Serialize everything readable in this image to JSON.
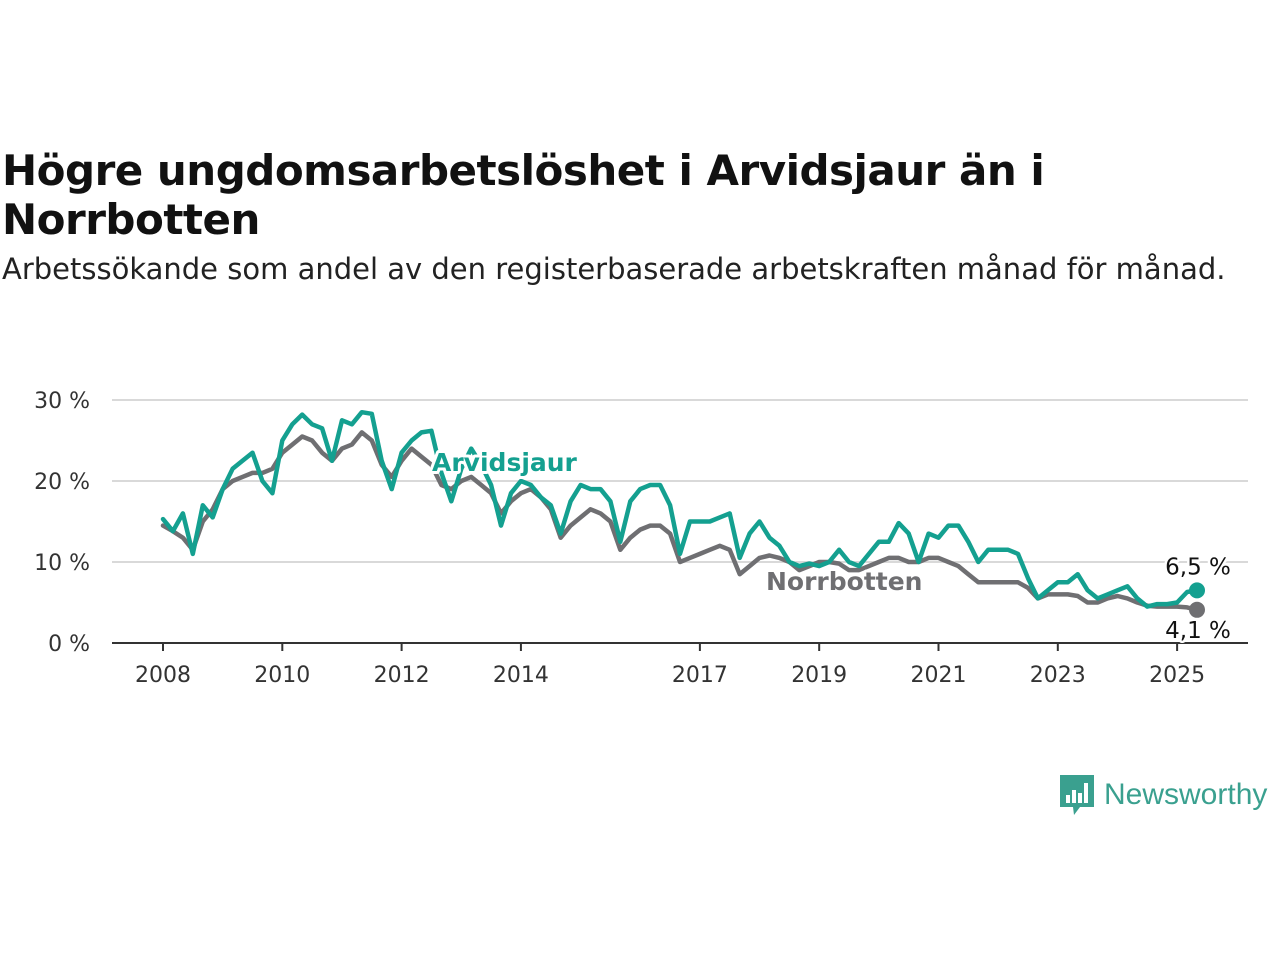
{
  "title": "Högre ungdomsarbetslöshet i Arvidsjaur än i Norrbotten",
  "subtitle": "Arbetssökande som andel av den registerbaserade arbetskraften månad för månad.",
  "brand": {
    "name": "Newsworthy",
    "icon": "newsworthy-logo-icon",
    "color": "#3aa08f"
  },
  "colors": {
    "arvidsjaur": "#14a090",
    "norrbotten": "#6f6f72",
    "grid": "#d9d9d9",
    "axis": "#333333"
  },
  "chart_data": {
    "type": "line",
    "title": "Högre ungdomsarbetslöshet i Arvidsjaur än i Norrbotten",
    "subtitle": "Arbetssökande som andel av den registerbaserade arbetskraften månad för månad.",
    "xlabel": "",
    "ylabel": "",
    "x_range": [
      "2008-01",
      "2025-05"
    ],
    "ylim": [
      0,
      30
    ],
    "y_ticks": [
      0,
      10,
      20,
      30
    ],
    "y_tick_labels": [
      "0 %",
      "10 %",
      "20 %",
      "30 %"
    ],
    "x_ticks": [
      "2008-01",
      "2010-01",
      "2012-01",
      "2014-01",
      "2017-01",
      "2019-01",
      "2021-01",
      "2023-01",
      "2025-01"
    ],
    "x_tick_labels": [
      "2008",
      "2010",
      "2012",
      "2014",
      "2017",
      "2019",
      "2021",
      "2023",
      "2025"
    ],
    "grid": "horizontal",
    "legend": "inline labels",
    "series": [
      {
        "name": "Arvidsjaur",
        "color": "#14a090",
        "end_label": "6,5 %",
        "points": [
          [
            "2008-01",
            15.3
          ],
          [
            "2008-03",
            13.8
          ],
          [
            "2008-05",
            16.0
          ],
          [
            "2008-07",
            11.0
          ],
          [
            "2008-09",
            17.0
          ],
          [
            "2008-11",
            15.5
          ],
          [
            "2009-01",
            19.0
          ],
          [
            "2009-03",
            21.5
          ],
          [
            "2009-05",
            22.5
          ],
          [
            "2009-07",
            23.5
          ],
          [
            "2009-09",
            20.0
          ],
          [
            "2009-11",
            18.5
          ],
          [
            "2010-01",
            25.0
          ],
          [
            "2010-03",
            27.0
          ],
          [
            "2010-05",
            28.2
          ],
          [
            "2010-07",
            27.0
          ],
          [
            "2010-09",
            26.5
          ],
          [
            "2010-11",
            22.5
          ],
          [
            "2011-01",
            27.5
          ],
          [
            "2011-03",
            27.0
          ],
          [
            "2011-05",
            28.5
          ],
          [
            "2011-07",
            28.3
          ],
          [
            "2011-09",
            22.5
          ],
          [
            "2011-11",
            19.0
          ],
          [
            "2012-01",
            23.5
          ],
          [
            "2012-03",
            25.0
          ],
          [
            "2012-05",
            26.0
          ],
          [
            "2012-07",
            26.2
          ],
          [
            "2012-09",
            21.0
          ],
          [
            "2012-11",
            17.5
          ],
          [
            "2013-01",
            21.5
          ],
          [
            "2013-03",
            24.0
          ],
          [
            "2013-05",
            22.0
          ],
          [
            "2013-07",
            19.5
          ],
          [
            "2013-09",
            14.5
          ],
          [
            "2013-11",
            18.5
          ],
          [
            "2014-01",
            20.0
          ],
          [
            "2014-03",
            19.5
          ],
          [
            "2014-05",
            18.0
          ],
          [
            "2014-07",
            17.0
          ],
          [
            "2014-09",
            13.5
          ],
          [
            "2014-11",
            17.5
          ],
          [
            "2015-01",
            19.5
          ],
          [
            "2015-03",
            19.0
          ],
          [
            "2015-05",
            19.0
          ],
          [
            "2015-07",
            17.5
          ],
          [
            "2015-09",
            12.5
          ],
          [
            "2015-11",
            17.5
          ],
          [
            "2016-01",
            19.0
          ],
          [
            "2016-03",
            19.5
          ],
          [
            "2016-05",
            19.5
          ],
          [
            "2016-07",
            17.0
          ],
          [
            "2016-09",
            11.0
          ],
          [
            "2016-11",
            15.0
          ],
          [
            "2017-01",
            15.0
          ],
          [
            "2017-03",
            15.0
          ],
          [
            "2017-05",
            15.5
          ],
          [
            "2017-07",
            16.0
          ],
          [
            "2017-09",
            10.5
          ],
          [
            "2017-11",
            13.5
          ],
          [
            "2018-01",
            15.0
          ],
          [
            "2018-03",
            13.0
          ],
          [
            "2018-05",
            12.0
          ],
          [
            "2018-07",
            10.0
          ],
          [
            "2018-09",
            9.5
          ],
          [
            "2018-11",
            9.8
          ],
          [
            "2019-01",
            9.5
          ],
          [
            "2019-03",
            10.0
          ],
          [
            "2019-05",
            11.5
          ],
          [
            "2019-07",
            10.0
          ],
          [
            "2019-09",
            9.5
          ],
          [
            "2019-11",
            11.0
          ],
          [
            "2020-01",
            12.5
          ],
          [
            "2020-03",
            12.5
          ],
          [
            "2020-05",
            14.8
          ],
          [
            "2020-07",
            13.5
          ],
          [
            "2020-09",
            10.0
          ],
          [
            "2020-11",
            13.5
          ],
          [
            "2021-01",
            13.0
          ],
          [
            "2021-03",
            14.5
          ],
          [
            "2021-05",
            14.5
          ],
          [
            "2021-07",
            12.5
          ],
          [
            "2021-09",
            10.0
          ],
          [
            "2021-11",
            11.5
          ],
          [
            "2022-01",
            11.5
          ],
          [
            "2022-03",
            11.5
          ],
          [
            "2022-05",
            11.0
          ],
          [
            "2022-07",
            8.0
          ],
          [
            "2022-09",
            5.5
          ],
          [
            "2022-11",
            6.5
          ],
          [
            "2023-01",
            7.5
          ],
          [
            "2023-03",
            7.5
          ],
          [
            "2023-05",
            8.5
          ],
          [
            "2023-07",
            6.5
          ],
          [
            "2023-09",
            5.5
          ],
          [
            "2023-11",
            6.0
          ],
          [
            "2024-01",
            6.5
          ],
          [
            "2024-03",
            7.0
          ],
          [
            "2024-05",
            5.5
          ],
          [
            "2024-07",
            4.5
          ],
          [
            "2024-09",
            4.8
          ],
          [
            "2024-11",
            4.8
          ],
          [
            "2025-01",
            5.0
          ],
          [
            "2025-03",
            6.3
          ],
          [
            "2025-05",
            6.5
          ]
        ]
      },
      {
        "name": "Norrbotten",
        "color": "#6f6f72",
        "end_label": "4,1 %",
        "points": [
          [
            "2008-01",
            14.5
          ],
          [
            "2008-03",
            13.8
          ],
          [
            "2008-05",
            13.0
          ],
          [
            "2008-07",
            11.5
          ],
          [
            "2008-09",
            15.0
          ],
          [
            "2008-11",
            16.5
          ],
          [
            "2009-01",
            19.0
          ],
          [
            "2009-03",
            20.0
          ],
          [
            "2009-05",
            20.5
          ],
          [
            "2009-07",
            21.0
          ],
          [
            "2009-09",
            21.0
          ],
          [
            "2009-11",
            21.5
          ],
          [
            "2010-01",
            23.5
          ],
          [
            "2010-03",
            24.5
          ],
          [
            "2010-05",
            25.5
          ],
          [
            "2010-07",
            25.0
          ],
          [
            "2010-09",
            23.5
          ],
          [
            "2010-11",
            22.5
          ],
          [
            "2011-01",
            24.0
          ],
          [
            "2011-03",
            24.5
          ],
          [
            "2011-05",
            26.0
          ],
          [
            "2011-07",
            25.0
          ],
          [
            "2011-09",
            22.0
          ],
          [
            "2011-11",
            20.5
          ],
          [
            "2012-01",
            22.5
          ],
          [
            "2012-03",
            24.0
          ],
          [
            "2012-05",
            23.0
          ],
          [
            "2012-07",
            22.0
          ],
          [
            "2012-09",
            19.5
          ],
          [
            "2012-11",
            19.0
          ],
          [
            "2013-01",
            20.0
          ],
          [
            "2013-03",
            20.5
          ],
          [
            "2013-05",
            19.5
          ],
          [
            "2013-07",
            18.5
          ],
          [
            "2013-09",
            16.0
          ],
          [
            "2013-11",
            17.5
          ],
          [
            "2014-01",
            18.5
          ],
          [
            "2014-03",
            19.0
          ],
          [
            "2014-05",
            18.0
          ],
          [
            "2014-07",
            16.5
          ],
          [
            "2014-09",
            13.0
          ],
          [
            "2014-11",
            14.5
          ],
          [
            "2015-01",
            15.5
          ],
          [
            "2015-03",
            16.5
          ],
          [
            "2015-05",
            16.0
          ],
          [
            "2015-07",
            15.0
          ],
          [
            "2015-09",
            11.5
          ],
          [
            "2015-11",
            13.0
          ],
          [
            "2016-01",
            14.0
          ],
          [
            "2016-03",
            14.5
          ],
          [
            "2016-05",
            14.5
          ],
          [
            "2016-07",
            13.5
          ],
          [
            "2016-09",
            10.0
          ],
          [
            "2016-11",
            10.5
          ],
          [
            "2017-01",
            11.0
          ],
          [
            "2017-03",
            11.5
          ],
          [
            "2017-05",
            12.0
          ],
          [
            "2017-07",
            11.5
          ],
          [
            "2017-09",
            8.5
          ],
          [
            "2017-11",
            9.5
          ],
          [
            "2018-01",
            10.5
          ],
          [
            "2018-03",
            10.8
          ],
          [
            "2018-05",
            10.5
          ],
          [
            "2018-07",
            10.0
          ],
          [
            "2018-09",
            9.0
          ],
          [
            "2018-11",
            9.5
          ],
          [
            "2019-01",
            10.0
          ],
          [
            "2019-03",
            10.0
          ],
          [
            "2019-05",
            9.8
          ],
          [
            "2019-07",
            9.0
          ],
          [
            "2019-09",
            9.0
          ],
          [
            "2019-11",
            9.5
          ],
          [
            "2020-01",
            10.0
          ],
          [
            "2020-03",
            10.5
          ],
          [
            "2020-05",
            10.5
          ],
          [
            "2020-07",
            10.0
          ],
          [
            "2020-09",
            10.0
          ],
          [
            "2020-11",
            10.5
          ],
          [
            "2021-01",
            10.5
          ],
          [
            "2021-03",
            10.0
          ],
          [
            "2021-05",
            9.5
          ],
          [
            "2021-07",
            8.5
          ],
          [
            "2021-09",
            7.5
          ],
          [
            "2021-11",
            7.5
          ],
          [
            "2022-01",
            7.5
          ],
          [
            "2022-03",
            7.5
          ],
          [
            "2022-05",
            7.5
          ],
          [
            "2022-07",
            6.8
          ],
          [
            "2022-09",
            5.5
          ],
          [
            "2022-11",
            6.0
          ],
          [
            "2023-01",
            6.0
          ],
          [
            "2023-03",
            6.0
          ],
          [
            "2023-05",
            5.8
          ],
          [
            "2023-07",
            5.0
          ],
          [
            "2023-09",
            5.0
          ],
          [
            "2023-11",
            5.5
          ],
          [
            "2024-01",
            5.8
          ],
          [
            "2024-03",
            5.5
          ],
          [
            "2024-05",
            5.0
          ],
          [
            "2024-07",
            4.6
          ],
          [
            "2024-09",
            4.5
          ],
          [
            "2024-11",
            4.5
          ],
          [
            "2025-01",
            4.5
          ],
          [
            "2025-03",
            4.4
          ],
          [
            "2025-05",
            4.1
          ]
        ]
      }
    ]
  }
}
